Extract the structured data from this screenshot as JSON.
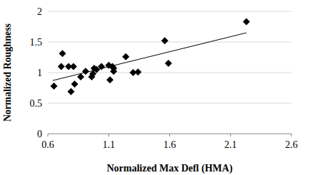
{
  "chart_data": {
    "type": "scatter",
    "x_label": "Normalized Max Defl (HMA)",
    "y_label": "Normalized Roughness",
    "xlim": [
      0.6,
      2.6
    ],
    "xticks": [
      0.6,
      1.1,
      1.6,
      2.1,
      2.6
    ],
    "ylim": [
      0,
      2
    ],
    "yticks": [
      0,
      0.5,
      1,
      1.5,
      2
    ],
    "grid": true,
    "series": [
      {
        "type": "scatter",
        "marker": "diamond",
        "color": "#000000",
        "x": [
          0.65,
          0.72,
          0.71,
          0.77,
          0.81,
          0.79,
          0.82,
          0.87,
          0.91,
          0.96,
          0.97,
          0.98,
          1.0,
          1.04,
          1.1,
          1.11,
          1.13,
          1.14,
          1.14,
          1.24,
          1.3,
          1.34,
          1.56,
          1.59,
          2.23
        ],
        "values": [
          0.78,
          1.31,
          1.1,
          1.1,
          1.1,
          0.69,
          0.81,
          0.93,
          1.02,
          0.93,
          0.98,
          1.07,
          1.05,
          1.1,
          1.12,
          0.88,
          1.1,
          1.02,
          1.07,
          1.26,
          1.0,
          1.01,
          1.52,
          1.15,
          1.83
        ]
      },
      {
        "type": "line",
        "line_style": "solid",
        "color": "#000000",
        "x": [
          0.64,
          2.23
        ],
        "values": [
          0.87,
          1.65
        ]
      }
    ]
  }
}
